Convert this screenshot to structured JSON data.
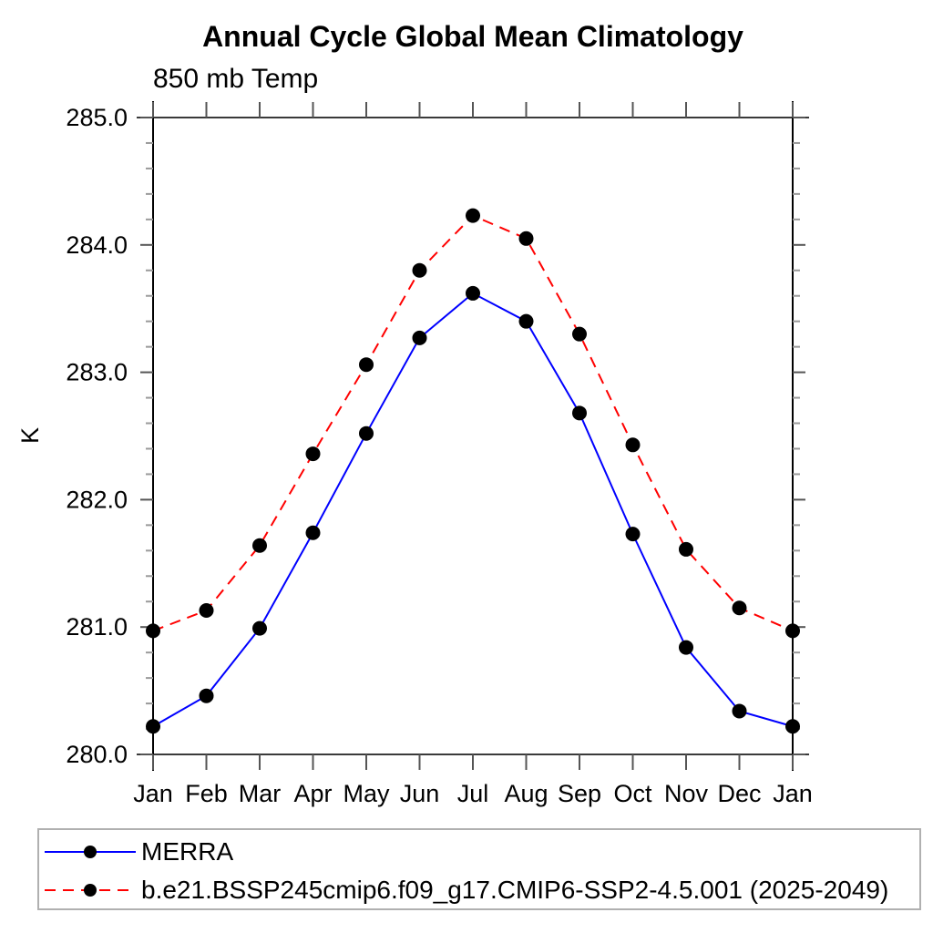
{
  "chart_data": {
    "type": "line",
    "title": "Annual Cycle Global Mean Climatology",
    "subtitle": "850 mb Temp",
    "ylabel": "K",
    "x_categories": [
      "Jan",
      "Feb",
      "Mar",
      "Apr",
      "May",
      "Jun",
      "Jul",
      "Aug",
      "Sep",
      "Oct",
      "Nov",
      "Dec",
      "Jan"
    ],
    "ylim": [
      280.0,
      285.0
    ],
    "ytick_labels": [
      "285.0",
      "284.0",
      "283.0",
      "282.0",
      "281.0",
      "280.0"
    ],
    "ytick_major_interval": 1.0,
    "ytick_minor_interval": 0.2,
    "grid": "off",
    "legend_position": "bottom-left",
    "series": [
      {
        "name": "MERRA",
        "line_color": "#0000ff",
        "line_style": "solid",
        "marker": "filled-circle",
        "marker_color": "#000000",
        "values": [
          280.22,
          280.46,
          280.99,
          281.74,
          282.52,
          283.27,
          283.62,
          283.4,
          282.68,
          281.73,
          280.84,
          280.34,
          280.22
        ]
      },
      {
        "name": "b.e21.BSSP245cmip6.f09_g17.CMIP6-SSP2-4.5.001 (2025-2049)",
        "line_color": "#ff0000",
        "line_style": "dashed",
        "marker": "filled-circle",
        "marker_color": "#000000",
        "values": [
          280.97,
          281.13,
          281.64,
          282.36,
          283.06,
          283.8,
          284.23,
          284.05,
          283.3,
          282.43,
          281.61,
          281.15,
          280.97
        ]
      }
    ]
  }
}
